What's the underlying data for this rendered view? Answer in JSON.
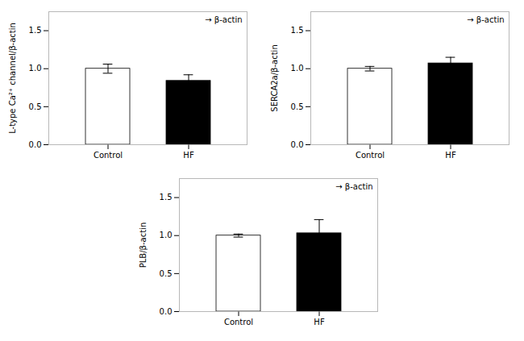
{
  "chart_data": [
    {
      "type": "bar",
      "ylabel": "L-type Ca²⁺ channel/β-actin",
      "categories": [
        "Control",
        "HF"
      ],
      "values": [
        1.0,
        0.84
      ],
      "errors": [
        0.06,
        0.08
      ],
      "colors": [
        "white",
        "black"
      ],
      "ylim": [
        0.0,
        1.75
      ],
      "yticks": [
        {
          "value": 0.0,
          "label": "0.0"
        },
        {
          "value": 0.5,
          "label": "0.5"
        },
        {
          "value": 1.0,
          "label": "1.0"
        },
        {
          "value": 1.5,
          "label": "1.5"
        }
      ],
      "annotation": "→ β-actin"
    },
    {
      "type": "bar",
      "ylabel": "SERCA2a/β-actin",
      "categories": [
        "Control",
        "HF"
      ],
      "values": [
        1.0,
        1.07
      ],
      "errors": [
        0.03,
        0.08
      ],
      "colors": [
        "white",
        "black"
      ],
      "ylim": [
        0.0,
        1.75
      ],
      "yticks": [
        {
          "value": 0.0,
          "label": "0.0"
        },
        {
          "value": 0.5,
          "label": "0.5"
        },
        {
          "value": 1.0,
          "label": "1.0"
        },
        {
          "value": 1.5,
          "label": "1.5"
        }
      ],
      "annotation": "→ β-actin"
    },
    {
      "type": "bar",
      "ylabel": "PLB/β-actin",
      "categories": [
        "Control",
        "HF"
      ],
      "values": [
        1.0,
        1.03
      ],
      "errors": [
        0.02,
        0.18
      ],
      "colors": [
        "white",
        "black"
      ],
      "ylim": [
        0.0,
        1.75
      ],
      "yticks": [
        {
          "value": 0.0,
          "label": "0.0"
        },
        {
          "value": 0.5,
          "label": "0.5"
        },
        {
          "value": 1.0,
          "label": "1.0"
        },
        {
          "value": 1.5,
          "label": "1.5"
        }
      ],
      "annotation": "→ β-actin"
    }
  ]
}
